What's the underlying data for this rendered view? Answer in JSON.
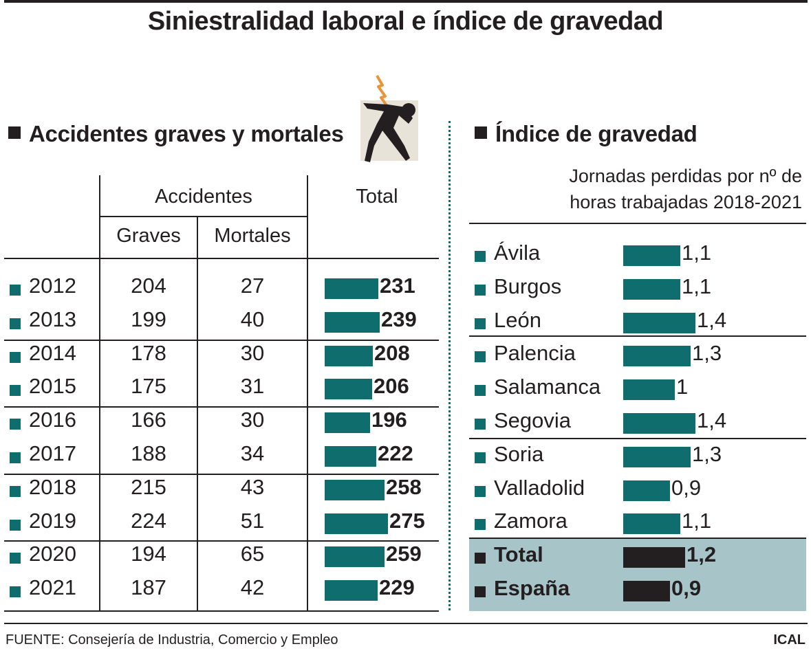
{
  "title": "Siniestralidad laboral e índice de gravedad",
  "colors": {
    "bar": "#0f6d6d",
    "bar_dark": "#231f20",
    "highlight_bg": "#a7c4c9",
    "bolt": "#e8943a"
  },
  "left": {
    "section_title": "Accidentes graves y mortales",
    "header": {
      "group": "Accidentes",
      "graves": "Graves",
      "mortales": "Mortales",
      "total": "Total"
    }
  },
  "right": {
    "section_title": "Índice de gravedad",
    "subtitle_line1": "Jornadas perdidas por nº de",
    "subtitle_line2": "horas trabajadas 2018-2021"
  },
  "chart_data": [
    {
      "type": "bar",
      "title": "Accidentes graves y mortales",
      "categories": [
        "2012",
        "2013",
        "2014",
        "2015",
        "2016",
        "2017",
        "2018",
        "2019",
        "2020",
        "2021"
      ],
      "series": [
        {
          "name": "Graves",
          "values": [
            "204",
            "199",
            "178",
            "175",
            "166",
            "188",
            "215",
            "224",
            "194",
            "187"
          ]
        },
        {
          "name": "Mortales",
          "values": [
            "27",
            "40",
            "30",
            "31",
            "30",
            "34",
            "43",
            "51",
            "65",
            "42"
          ]
        },
        {
          "name": "Total",
          "values": [
            231,
            239,
            208,
            206,
            196,
            222,
            258,
            275,
            259,
            229
          ]
        }
      ]
    },
    {
      "type": "bar",
      "title": "Índice de gravedad",
      "categories": [
        "Ávila",
        "Burgos",
        "León",
        "Palencia",
        "Salamanca",
        "Segovia",
        "Soria",
        "Valladolid",
        "Zamora",
        "Total",
        "España"
      ],
      "values": [
        1.1,
        1.1,
        1.4,
        1.3,
        1,
        1.4,
        1.3,
        0.9,
        1.1,
        1.2,
        0.9
      ],
      "labels": [
        "1,1",
        "1,1",
        "1,4",
        "1,3",
        "1",
        "1,4",
        "1,3",
        "0,9",
        "1,1",
        "1,2",
        "0,9"
      ]
    }
  ],
  "footer": {
    "source": "FUENTE: Consejería de Industria, Comercio y Empleo",
    "credit": "ICAL"
  }
}
